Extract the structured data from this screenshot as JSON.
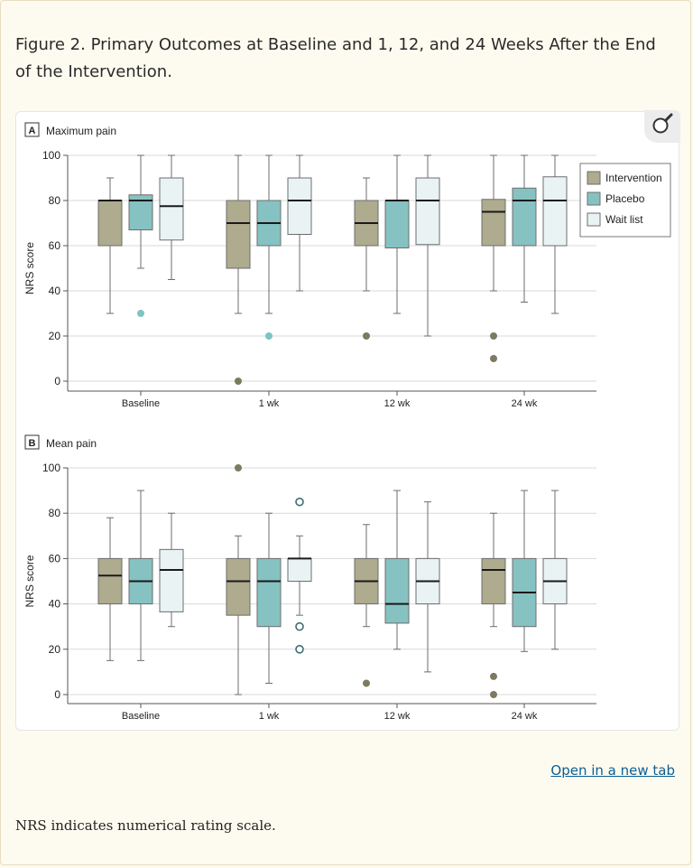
{
  "caption": "Figure 2. Primary Outcomes at Baseline and 1, 12, and 24 Weeks After the End of the Intervention.",
  "open_link": "Open in a new tab",
  "footnote": "NRS indicates numerical rating scale.",
  "zoom_icon": "magnifier-icon",
  "colors": {
    "intervention": "#aeab8e",
    "placebo": "#86c2c2",
    "waitlist": "#e9f3f3",
    "box_stroke": "#6d6d6d",
    "grid": "#d9d9d9",
    "outlier_dark": "#7d7a60",
    "outlier_teal": "#7cc4c6",
    "outlier_open": "#3e6e72"
  },
  "chart_data": [
    {
      "type": "boxplot",
      "panel_letter": "A",
      "title": "Maximum pain",
      "ylabel": "NRS score",
      "xlabel": "",
      "ylim": [
        0,
        100
      ],
      "yticks": [
        "0",
        "20",
        "40",
        "60",
        "80",
        "100"
      ],
      "categories": [
        "Baseline",
        "1 wk",
        "12 wk",
        "24 wk"
      ],
      "grid": true,
      "legend_position": "top-right",
      "series": [
        {
          "name": "Intervention",
          "color_key": "intervention",
          "boxes": [
            {
              "min": 30,
              "q1": 60,
              "median": 80,
              "q3": 80,
              "max": 90,
              "outliers": []
            },
            {
              "min": 30,
              "q1": 50,
              "median": 70,
              "q3": 80,
              "max": 100,
              "outliers": [
                0
              ]
            },
            {
              "min": 40,
              "q1": 60,
              "median": 70,
              "q3": 80,
              "max": 90,
              "outliers": [
                20
              ]
            },
            {
              "min": 40,
              "q1": 60,
              "median": 75,
              "q3": 80.5,
              "max": 100,
              "outliers": [
                20,
                10
              ]
            }
          ]
        },
        {
          "name": "Placebo",
          "color_key": "placebo",
          "boxes": [
            {
              "min": 50,
              "q1": 67,
              "median": 80,
              "q3": 82.5,
              "max": 100,
              "outliers": [
                30
              ]
            },
            {
              "min": 30,
              "q1": 60,
              "median": 70,
              "q3": 80,
              "max": 100,
              "outliers": [
                20
              ]
            },
            {
              "min": 30,
              "q1": 59,
              "median": 80,
              "q3": 80,
              "max": 100,
              "outliers": []
            },
            {
              "min": 35,
              "q1": 60,
              "median": 80,
              "q3": 85.5,
              "max": 100,
              "outliers": []
            }
          ]
        },
        {
          "name": "Wait list",
          "color_key": "waitlist",
          "boxes": [
            {
              "min": 45,
              "q1": 62.5,
              "median": 77.5,
              "q3": 90,
              "max": 100,
              "outliers": []
            },
            {
              "min": 40,
              "q1": 65,
              "median": 80,
              "q3": 90,
              "max": 100,
              "outliers": []
            },
            {
              "min": 20,
              "q1": 60.5,
              "median": 80,
              "q3": 90,
              "max": 100,
              "outliers": []
            },
            {
              "min": 30,
              "q1": 60,
              "median": 80,
              "q3": 90.5,
              "max": 100,
              "outliers": []
            }
          ]
        }
      ]
    },
    {
      "type": "boxplot",
      "panel_letter": "B",
      "title": "Mean pain",
      "ylabel": "NRS score",
      "xlabel": "",
      "ylim": [
        0,
        100
      ],
      "yticks": [
        "0",
        "20",
        "40",
        "60",
        "80",
        "100"
      ],
      "categories": [
        "Baseline",
        "1 wk",
        "12 wk",
        "24 wk"
      ],
      "grid": true,
      "legend_position": "none",
      "series": [
        {
          "name": "Intervention",
          "color_key": "intervention",
          "boxes": [
            {
              "min": 15,
              "q1": 40,
              "median": 52.5,
              "q3": 60,
              "max": 78,
              "outliers": []
            },
            {
              "min": 0,
              "q1": 35,
              "median": 50,
              "q3": 60,
              "max": 70,
              "outliers": [
                100
              ]
            },
            {
              "min": 30,
              "q1": 40,
              "median": 50,
              "q3": 60,
              "max": 75,
              "outliers": [
                5
              ]
            },
            {
              "min": 30,
              "q1": 40,
              "median": 55,
              "q3": 60,
              "max": 80,
              "outliers": [
                8,
                0
              ]
            }
          ]
        },
        {
          "name": "Placebo",
          "color_key": "placebo",
          "boxes": [
            {
              "min": 15,
              "q1": 40,
              "median": 50,
              "q3": 60,
              "max": 90,
              "outliers": []
            },
            {
              "min": 5,
              "q1": 30,
              "median": 50,
              "q3": 60,
              "max": 80,
              "outliers": []
            },
            {
              "min": 20,
              "q1": 31.5,
              "median": 40,
              "q3": 60,
              "max": 90,
              "outliers": []
            },
            {
              "min": 19,
              "q1": 30,
              "median": 45,
              "q3": 60,
              "max": 90,
              "outliers": []
            }
          ]
        },
        {
          "name": "Wait list",
          "color_key": "waitlist",
          "boxes": [
            {
              "min": 30,
              "q1": 36.5,
              "median": 55,
              "q3": 64,
              "max": 80,
              "outliers": []
            },
            {
              "min": 35,
              "q1": 50,
              "median": 60,
              "q3": 60,
              "max": 70,
              "outliers": [
                85,
                30,
                20
              ]
            },
            {
              "min": 10,
              "q1": 40,
              "median": 50,
              "q3": 60,
              "max": 85,
              "outliers": []
            },
            {
              "min": 20,
              "q1": 40,
              "median": 50,
              "q3": 60,
              "max": 90,
              "outliers": []
            }
          ]
        }
      ]
    }
  ]
}
